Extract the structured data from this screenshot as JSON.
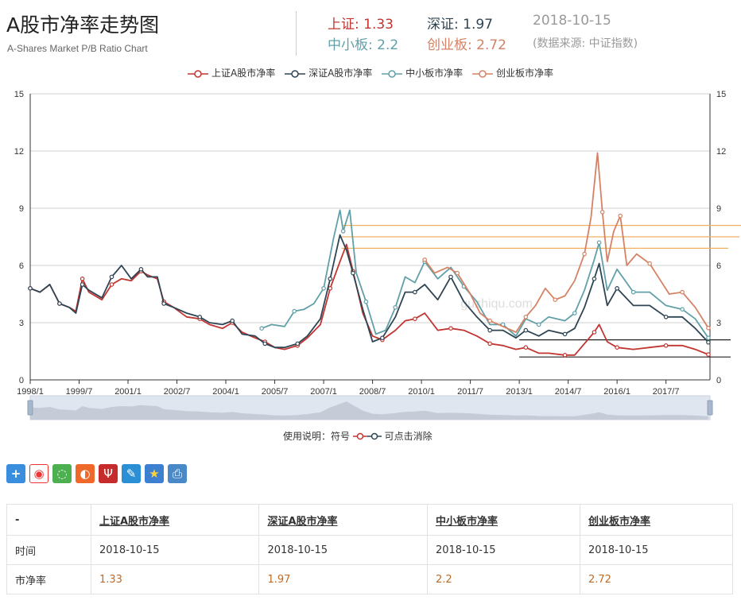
{
  "header": {
    "title": "A股市净率走势图",
    "subtitle": "A-Shares Market P/B Ratio Chart",
    "stats": [
      {
        "label": "上证:",
        "value": "1.33",
        "color": "#c23531"
      },
      {
        "label": "深证:",
        "value": "1.97",
        "color": "#2f4554"
      },
      {
        "label": "中小板:",
        "value": "2.2",
        "color": "#61a0a8"
      },
      {
        "label": "创业板:",
        "value": "2.72",
        "color": "#d48265"
      }
    ],
    "date": "2018-10-15",
    "source": "(数据来源: 中证指数)"
  },
  "legend": [
    {
      "name": "上证A股市净率",
      "color": "#c23531"
    },
    {
      "name": "深证A股市净率",
      "color": "#2f4554"
    },
    {
      "name": "中小板市净率",
      "color": "#61a0a8"
    },
    {
      "name": "创业板市净率",
      "color": "#d48265"
    }
  ],
  "watermark": "guzhiqu.com",
  "hint": {
    "prefix": "使用说明：符号",
    "suffix": "可点击消除"
  },
  "share_icons": [
    "plus-icon",
    "weibo-icon",
    "wechat-icon",
    "tencent-weibo-icon",
    "tencent-icon",
    "pencil-icon",
    "star-icon",
    "print-icon"
  ],
  "table": {
    "headers": [
      "-",
      "上证A股市净率",
      "深证A股市净率",
      "中小板市净率",
      "创业板市净率"
    ],
    "rows": [
      {
        "label": "时间",
        "cells": [
          "2018-10-15",
          "2018-10-15",
          "2018-10-15",
          "2018-10-15"
        ]
      },
      {
        "label": "市净率",
        "cells": [
          "1.33",
          "1.97",
          "2.2",
          "2.72"
        ]
      }
    ]
  },
  "chart_data": {
    "type": "line",
    "x_axis": {
      "ticks": [
        "1998/1",
        "1999/7",
        "2001/1",
        "2002/7",
        "2004/1",
        "2005/7",
        "2007/1",
        "2008/7",
        "2010/1",
        "2011/7",
        "2013/1",
        "2014/7",
        "2016/1",
        "2017/7"
      ],
      "range": [
        "1998/1",
        "2018/10"
      ]
    },
    "y_axis": {
      "ticks": [
        0,
        3,
        6,
        9,
        12,
        15
      ],
      "ylim": [
        0,
        15
      ]
    },
    "grid": true,
    "legend_position": "top-center",
    "series": [
      {
        "name": "上证A股市净率",
        "color": "#c23531",
        "points": [
          [
            1998.0,
            4.8
          ],
          [
            1998.3,
            4.6
          ],
          [
            1998.6,
            5.0
          ],
          [
            1998.9,
            4.0
          ],
          [
            1999.2,
            3.8
          ],
          [
            1999.4,
            3.6
          ],
          [
            1999.6,
            5.3
          ],
          [
            1999.8,
            4.6
          ],
          [
            2000.2,
            4.2
          ],
          [
            2000.5,
            5.0
          ],
          [
            2000.8,
            5.3
          ],
          [
            2001.1,
            5.2
          ],
          [
            2001.4,
            5.7
          ],
          [
            2001.6,
            5.5
          ],
          [
            2001.9,
            5.3
          ],
          [
            2002.1,
            4.1
          ],
          [
            2002.4,
            3.8
          ],
          [
            2002.8,
            3.3
          ],
          [
            2003.2,
            3.2
          ],
          [
            2003.5,
            2.9
          ],
          [
            2003.9,
            2.7
          ],
          [
            2004.2,
            3.0
          ],
          [
            2004.5,
            2.5
          ],
          [
            2004.9,
            2.2
          ],
          [
            2005.2,
            2.0
          ],
          [
            2005.5,
            1.7
          ],
          [
            2005.8,
            1.6
          ],
          [
            2006.2,
            1.8
          ],
          [
            2006.5,
            2.2
          ],
          [
            2006.9,
            2.9
          ],
          [
            2007.2,
            4.8
          ],
          [
            2007.5,
            6.2
          ],
          [
            2007.7,
            7.1
          ],
          [
            2007.9,
            5.7
          ],
          [
            2008.2,
            3.5
          ],
          [
            2008.5,
            2.3
          ],
          [
            2008.8,
            2.1
          ],
          [
            2009.2,
            2.6
          ],
          [
            2009.5,
            3.1
          ],
          [
            2009.8,
            3.2
          ],
          [
            2010.1,
            3.5
          ],
          [
            2010.5,
            2.6
          ],
          [
            2010.9,
            2.7
          ],
          [
            2011.3,
            2.6
          ],
          [
            2011.7,
            2.3
          ],
          [
            2012.1,
            1.9
          ],
          [
            2012.5,
            1.8
          ],
          [
            2012.9,
            1.6
          ],
          [
            2013.2,
            1.7
          ],
          [
            2013.6,
            1.4
          ],
          [
            2013.9,
            1.4
          ],
          [
            2014.4,
            1.3
          ],
          [
            2014.7,
            1.3
          ],
          [
            2015.0,
            1.9
          ],
          [
            2015.3,
            2.5
          ],
          [
            2015.45,
            2.9
          ],
          [
            2015.7,
            2.0
          ],
          [
            2016.0,
            1.7
          ],
          [
            2016.5,
            1.6
          ],
          [
            2017.0,
            1.7
          ],
          [
            2017.5,
            1.8
          ],
          [
            2018.0,
            1.8
          ],
          [
            2018.4,
            1.6
          ],
          [
            2018.8,
            1.33
          ]
        ]
      },
      {
        "name": "深证A股市净率",
        "color": "#2f4554",
        "points": [
          [
            1998.0,
            4.8
          ],
          [
            1998.3,
            4.6
          ],
          [
            1998.6,
            5.0
          ],
          [
            1998.9,
            4.0
          ],
          [
            1999.2,
            3.8
          ],
          [
            1999.4,
            3.5
          ],
          [
            1999.6,
            5.0
          ],
          [
            1999.8,
            4.7
          ],
          [
            2000.2,
            4.3
          ],
          [
            2000.5,
            5.4
          ],
          [
            2000.8,
            6.0
          ],
          [
            2001.1,
            5.3
          ],
          [
            2001.4,
            5.8
          ],
          [
            2001.6,
            5.4
          ],
          [
            2001.9,
            5.4
          ],
          [
            2002.1,
            4.0
          ],
          [
            2002.4,
            3.8
          ],
          [
            2002.8,
            3.5
          ],
          [
            2003.2,
            3.3
          ],
          [
            2003.5,
            3.0
          ],
          [
            2003.9,
            2.9
          ],
          [
            2004.2,
            3.1
          ],
          [
            2004.5,
            2.4
          ],
          [
            2004.9,
            2.3
          ],
          [
            2005.2,
            1.9
          ],
          [
            2005.5,
            1.7
          ],
          [
            2005.8,
            1.7
          ],
          [
            2006.2,
            1.9
          ],
          [
            2006.5,
            2.3
          ],
          [
            2006.9,
            3.2
          ],
          [
            2007.2,
            5.3
          ],
          [
            2007.5,
            7.6
          ],
          [
            2007.7,
            6.8
          ],
          [
            2007.9,
            5.6
          ],
          [
            2008.2,
            3.7
          ],
          [
            2008.5,
            2.0
          ],
          [
            2008.8,
            2.2
          ],
          [
            2009.2,
            3.3
          ],
          [
            2009.5,
            4.6
          ],
          [
            2009.8,
            4.6
          ],
          [
            2010.1,
            5.0
          ],
          [
            2010.5,
            4.2
          ],
          [
            2010.9,
            5.4
          ],
          [
            2011.3,
            4.1
          ],
          [
            2011.7,
            3.3
          ],
          [
            2012.1,
            2.6
          ],
          [
            2012.5,
            2.6
          ],
          [
            2012.9,
            2.2
          ],
          [
            2013.2,
            2.6
          ],
          [
            2013.6,
            2.3
          ],
          [
            2013.9,
            2.6
          ],
          [
            2014.4,
            2.4
          ],
          [
            2014.7,
            2.7
          ],
          [
            2015.0,
            3.8
          ],
          [
            2015.3,
            5.3
          ],
          [
            2015.45,
            6.1
          ],
          [
            2015.7,
            3.9
          ],
          [
            2016.0,
            4.8
          ],
          [
            2016.5,
            3.9
          ],
          [
            2017.0,
            3.9
          ],
          [
            2017.5,
            3.3
          ],
          [
            2018.0,
            3.3
          ],
          [
            2018.4,
            2.7
          ],
          [
            2018.8,
            1.97
          ]
        ]
      },
      {
        "name": "中小板市净率",
        "color": "#61a0a8",
        "points": [
          [
            2005.1,
            2.7
          ],
          [
            2005.4,
            2.9
          ],
          [
            2005.8,
            2.8
          ],
          [
            2006.1,
            3.6
          ],
          [
            2006.4,
            3.7
          ],
          [
            2006.7,
            4.0
          ],
          [
            2007.0,
            4.8
          ],
          [
            2007.3,
            7.4
          ],
          [
            2007.5,
            8.9
          ],
          [
            2007.6,
            7.8
          ],
          [
            2007.8,
            8.9
          ],
          [
            2008.0,
            5.6
          ],
          [
            2008.3,
            4.1
          ],
          [
            2008.6,
            2.4
          ],
          [
            2008.9,
            2.6
          ],
          [
            2009.2,
            3.8
          ],
          [
            2009.5,
            5.4
          ],
          [
            2009.8,
            5.1
          ],
          [
            2010.1,
            6.2
          ],
          [
            2010.5,
            5.3
          ],
          [
            2010.9,
            5.9
          ],
          [
            2011.3,
            4.9
          ],
          [
            2011.7,
            4.1
          ],
          [
            2012.1,
            2.9
          ],
          [
            2012.5,
            2.9
          ],
          [
            2012.9,
            2.3
          ],
          [
            2013.2,
            3.2
          ],
          [
            2013.6,
            2.9
          ],
          [
            2013.9,
            3.3
          ],
          [
            2014.4,
            3.1
          ],
          [
            2014.7,
            3.5
          ],
          [
            2015.0,
            4.7
          ],
          [
            2015.3,
            6.3
          ],
          [
            2015.45,
            7.2
          ],
          [
            2015.7,
            4.7
          ],
          [
            2016.0,
            5.8
          ],
          [
            2016.5,
            4.6
          ],
          [
            2017.0,
            4.6
          ],
          [
            2017.5,
            3.9
          ],
          [
            2018.0,
            3.7
          ],
          [
            2018.4,
            3.2
          ],
          [
            2018.8,
            2.2
          ]
        ]
      },
      {
        "name": "创业板市净率",
        "color": "#d48265",
        "points": [
          [
            2010.1,
            6.3
          ],
          [
            2010.4,
            5.6
          ],
          [
            2010.8,
            5.9
          ],
          [
            2011.1,
            5.6
          ],
          [
            2011.5,
            4.5
          ],
          [
            2011.8,
            3.5
          ],
          [
            2012.1,
            3.1
          ],
          [
            2012.5,
            2.8
          ],
          [
            2012.9,
            2.5
          ],
          [
            2013.2,
            3.3
          ],
          [
            2013.5,
            3.9
          ],
          [
            2013.8,
            4.8
          ],
          [
            2014.1,
            4.2
          ],
          [
            2014.4,
            4.4
          ],
          [
            2014.7,
            5.2
          ],
          [
            2015.0,
            6.6
          ],
          [
            2015.2,
            8.5
          ],
          [
            2015.4,
            11.9
          ],
          [
            2015.55,
            8.8
          ],
          [
            2015.7,
            6.2
          ],
          [
            2015.9,
            7.8
          ],
          [
            2016.1,
            8.6
          ],
          [
            2016.3,
            6.0
          ],
          [
            2016.6,
            6.6
          ],
          [
            2017.0,
            6.1
          ],
          [
            2017.3,
            5.3
          ],
          [
            2017.6,
            4.5
          ],
          [
            2018.0,
            4.6
          ],
          [
            2018.4,
            3.8
          ],
          [
            2018.8,
            2.72
          ]
        ]
      }
    ],
    "reference_lines": [
      {
        "color": "#f0b060",
        "values": [
          8.1,
          7.5,
          6.9
        ]
      },
      {
        "color": "#222222",
        "values": [
          2.1,
          1.2
        ]
      }
    ]
  }
}
